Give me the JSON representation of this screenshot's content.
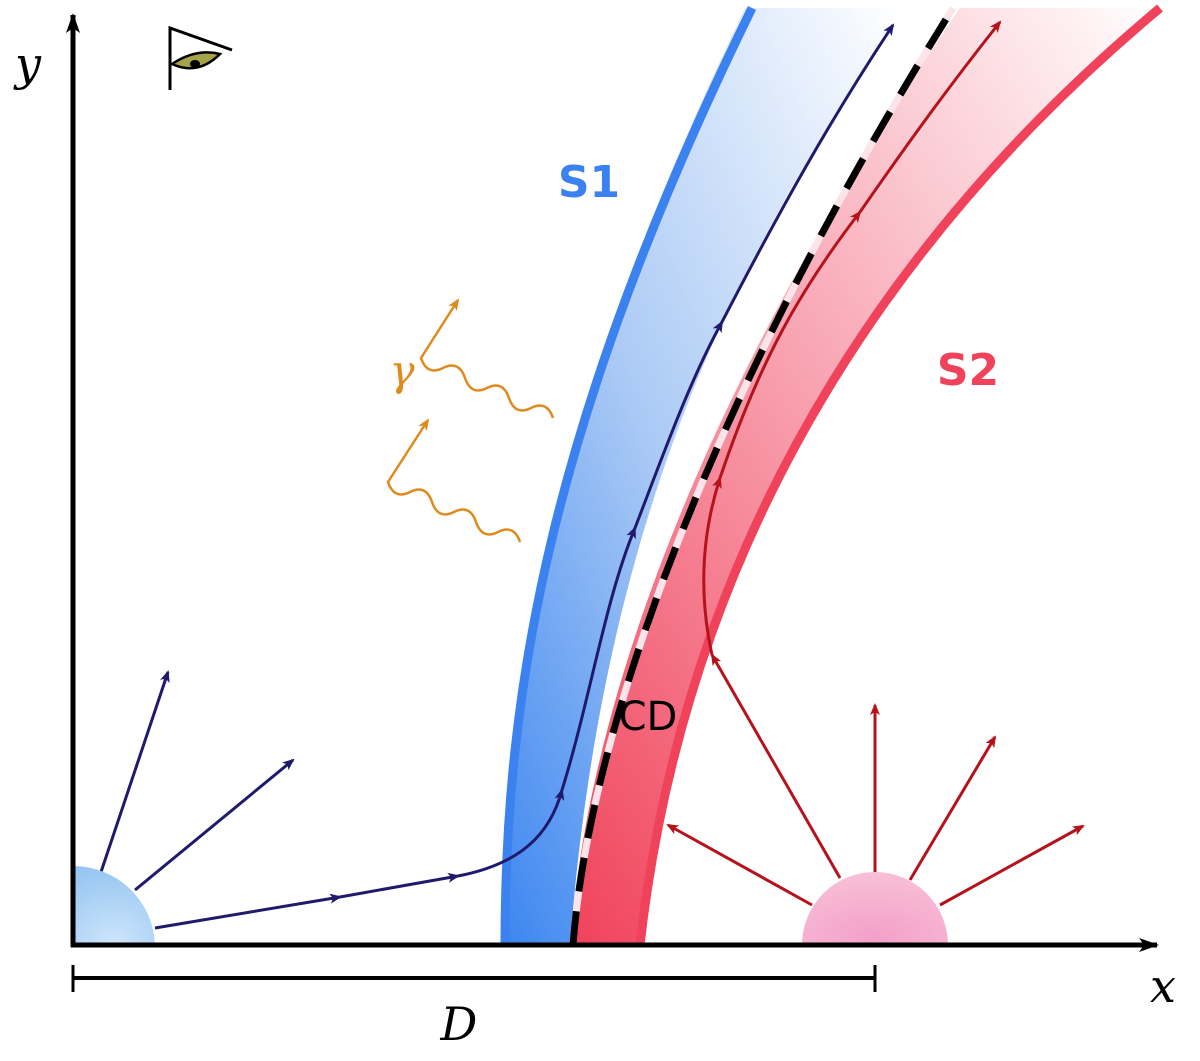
{
  "labels": {
    "y_axis": "y",
    "x_axis": "x",
    "distance": "D",
    "shock_1": "S1",
    "shock_2": "S2",
    "contact_discontinuity": "CD",
    "gamma": "γ"
  },
  "colors": {
    "blue_shock": "#3b82f0",
    "red_shock": "#f0425a",
    "blue_flow": "#1f1a6b",
    "red_flow": "#b5121b",
    "photon": "#e08a1e",
    "star_1": "#a9d3f5",
    "star_2": "#f59bc4"
  },
  "icons": [
    "eye-icon"
  ]
}
